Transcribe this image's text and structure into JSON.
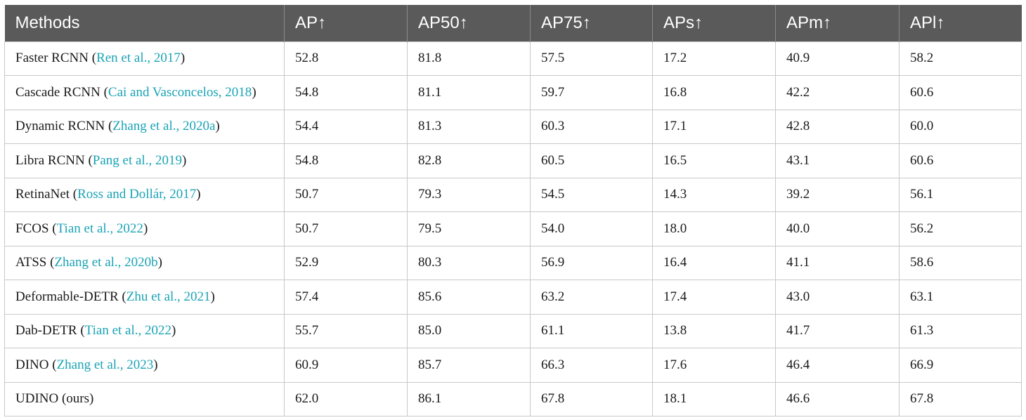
{
  "table": {
    "headers": [
      "Methods",
      "AP↑",
      "AP50↑",
      "AP75↑",
      "APs↑",
      "APm↑",
      "APl↑"
    ],
    "rows": [
      {
        "method": "Faster RCNN",
        "cite": "Ren et al., 2017",
        "values": [
          "52.8",
          "81.8",
          "57.5",
          "17.2",
          "40.9",
          "58.2"
        ]
      },
      {
        "method": "Cascade RCNN",
        "cite": "Cai and Vasconcelos, 2018",
        "values": [
          "54.8",
          "81.1",
          "59.7",
          "16.8",
          "42.2",
          "60.6"
        ]
      },
      {
        "method": "Dynamic RCNN",
        "cite": "Zhang et al., 2020a",
        "values": [
          "54.4",
          "81.3",
          "60.3",
          "17.1",
          "42.8",
          "60.0"
        ]
      },
      {
        "method": "Libra RCNN",
        "cite": "Pang et al., 2019",
        "values": [
          "54.8",
          "82.8",
          "60.5",
          "16.5",
          "43.1",
          "60.6"
        ]
      },
      {
        "method": "RetinaNet",
        "cite": "Ross and Dollár, 2017",
        "values": [
          "50.7",
          "79.3",
          "54.5",
          "14.3",
          "39.2",
          "56.1"
        ]
      },
      {
        "method": "FCOS",
        "cite": "Tian et al., 2022",
        "values": [
          "50.7",
          "79.5",
          "54.0",
          "18.0",
          "40.0",
          "56.2"
        ]
      },
      {
        "method": "ATSS",
        "cite": "Zhang et al., 2020b",
        "values": [
          "52.9",
          "80.3",
          "56.9",
          "16.4",
          "41.1",
          "58.6"
        ]
      },
      {
        "method": "Deformable-DETR",
        "cite": "Zhu et al., 2021",
        "values": [
          "57.4",
          "85.6",
          "63.2",
          "17.4",
          "43.0",
          "63.1"
        ]
      },
      {
        "method": "Dab-DETR",
        "cite": "Tian et al., 2022",
        "values": [
          "55.7",
          "85.0",
          "61.1",
          "13.8",
          "41.7",
          "61.3"
        ]
      },
      {
        "method": "DINO",
        "cite": "Zhang et al., 2023",
        "values": [
          "60.9",
          "85.7",
          "66.3",
          "17.6",
          "46.4",
          "66.9"
        ]
      },
      {
        "method": "UDINO (ours)",
        "cite": "",
        "values": [
          "62.0",
          "86.1",
          "67.8",
          "18.1",
          "46.6",
          "67.8"
        ]
      }
    ]
  }
}
